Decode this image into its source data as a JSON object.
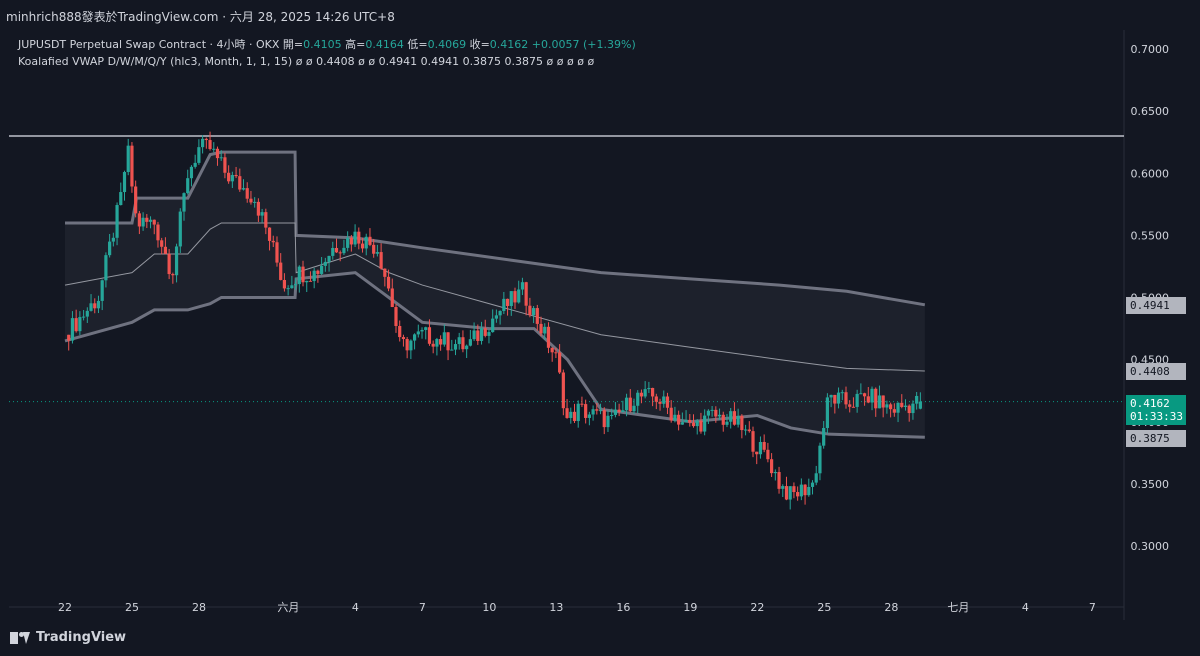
{
  "attribution": "minhrich888發表於TradingView.com · 六月 28, 2025 14:26 UTC+8",
  "legend": {
    "symbol": "JUPUSDT Perpetual Swap Contract · 4小時 · OKX",
    "open_label": "開=",
    "open": "0.4105",
    "high_label": "高=",
    "high": "0.4164",
    "low_label": "低=",
    "low": "0.4069",
    "close_label": "收=",
    "close": "0.4162",
    "change": "+0.0057 (+1.39%)",
    "indicator": "Koalafied VWAP D/W/M/Q/Y (hlc3, Month, 1, 1, 15)",
    "indicator_values": "ø ø 0.4408 ø ø 0.4941 0.4941 0.3875 0.3875 ø ø ø ø ø"
  },
  "badges": {
    "upper": "0.4941",
    "mid": "0.4408",
    "price": "0.4162",
    "countdown": "01:33:33",
    "lower": "0.3875"
  },
  "footer": {
    "logo_text": "TradingView"
  },
  "colors": {
    "up": "#26a69a",
    "down": "#ef5350",
    "band": "#787b86",
    "background": "#131722"
  },
  "chart_data": {
    "type": "candlestick",
    "symbol": "JUPUSDT",
    "interval": "4h",
    "y_ticks": [
      0.3,
      0.35,
      0.4,
      0.45,
      0.5,
      0.55,
      0.6,
      0.65,
      0.7
    ],
    "y_tick_labels": [
      "0.3000",
      "0.3500",
      "0.4000",
      "0.4500",
      "0.5000",
      "0.5500",
      "0.6000",
      "0.6500",
      "0.7000"
    ],
    "ylim": [
      0.28,
      0.72
    ],
    "x_tick_labels": [
      "22",
      "25",
      "28",
      "六月",
      "4",
      "7",
      "10",
      "13",
      "16",
      "19",
      "22",
      "25",
      "28",
      "七月",
      "4",
      "7"
    ],
    "x_tick_days": [
      0,
      3,
      6,
      10,
      13,
      16,
      19,
      22,
      25,
      28,
      31,
      34,
      37,
      40,
      43,
      46
    ],
    "horizontal_line": 0.63,
    "current_price": 0.4162,
    "price_path": [
      [
        0,
        0.47
      ],
      [
        1.5,
        0.5
      ],
      [
        2.5,
        0.58
      ],
      [
        2.8,
        0.62
      ],
      [
        3.2,
        0.56
      ],
      [
        4.0,
        0.56
      ],
      [
        4.8,
        0.52
      ],
      [
        5.5,
        0.6
      ],
      [
        6.0,
        0.62
      ],
      [
        6.5,
        0.62
      ],
      [
        7.2,
        0.6
      ],
      [
        8.5,
        0.58
      ],
      [
        9.3,
        0.54
      ],
      [
        9.8,
        0.51
      ],
      [
        10.5,
        0.52
      ],
      [
        11.2,
        0.52
      ],
      [
        12.0,
        0.54
      ],
      [
        13.0,
        0.55
      ],
      [
        14.0,
        0.54
      ],
      [
        14.6,
        0.5
      ],
      [
        15.0,
        0.46
      ],
      [
        16.0,
        0.47
      ],
      [
        18.0,
        0.46
      ],
      [
        19.5,
        0.49
      ],
      [
        20.5,
        0.505
      ],
      [
        21.2,
        0.48
      ],
      [
        22.0,
        0.45
      ],
      [
        22.5,
        0.4
      ],
      [
        23.0,
        0.41
      ],
      [
        24.5,
        0.4
      ],
      [
        25.5,
        0.42
      ],
      [
        26.5,
        0.42
      ],
      [
        27.0,
        0.41
      ],
      [
        28.0,
        0.395
      ],
      [
        29.0,
        0.405
      ],
      [
        30.0,
        0.4
      ],
      [
        31.0,
        0.38
      ],
      [
        31.5,
        0.37
      ],
      [
        32.0,
        0.35
      ],
      [
        32.5,
        0.34
      ],
      [
        33.5,
        0.35
      ],
      [
        34.2,
        0.42
      ],
      [
        35.0,
        0.415
      ],
      [
        36.0,
        0.42
      ],
      [
        37.0,
        0.41
      ],
      [
        38.3,
        0.4162
      ]
    ],
    "vwap_upper": [
      [
        0,
        0.56
      ],
      [
        3.0,
        0.56
      ],
      [
        3.2,
        0.58
      ],
      [
        5.5,
        0.58
      ],
      [
        6.5,
        0.615
      ],
      [
        7.0,
        0.617
      ],
      [
        10.3,
        0.617
      ],
      [
        10.35,
        0.55
      ],
      [
        13.0,
        0.548
      ],
      [
        16.0,
        0.54
      ],
      [
        20.0,
        0.53
      ],
      [
        24.0,
        0.52
      ],
      [
        28.0,
        0.515
      ],
      [
        32.0,
        0.51
      ],
      [
        35.0,
        0.505
      ],
      [
        38.5,
        0.4941
      ]
    ],
    "vwap_mid": [
      [
        0,
        0.51
      ],
      [
        3.0,
        0.52
      ],
      [
        4.0,
        0.535
      ],
      [
        5.5,
        0.535
      ],
      [
        6.5,
        0.555
      ],
      [
        7.0,
        0.56
      ],
      [
        10.3,
        0.56
      ],
      [
        10.35,
        0.52
      ],
      [
        13.0,
        0.535
      ],
      [
        14.5,
        0.52
      ],
      [
        16.0,
        0.51
      ],
      [
        20.0,
        0.49
      ],
      [
        24.0,
        0.47
      ],
      [
        28.0,
        0.46
      ],
      [
        32.0,
        0.45
      ],
      [
        35.0,
        0.443
      ],
      [
        38.5,
        0.4408
      ]
    ],
    "vwap_lower": [
      [
        0,
        0.465
      ],
      [
        3.0,
        0.48
      ],
      [
        4.0,
        0.49
      ],
      [
        5.5,
        0.49
      ],
      [
        6.5,
        0.495
      ],
      [
        7.0,
        0.5
      ],
      [
        10.3,
        0.5
      ],
      [
        10.35,
        0.515
      ],
      [
        13.0,
        0.52
      ],
      [
        14.5,
        0.5
      ],
      [
        16.0,
        0.48
      ],
      [
        19.0,
        0.475
      ],
      [
        21.0,
        0.475
      ],
      [
        22.5,
        0.45
      ],
      [
        24.0,
        0.41
      ],
      [
        28.0,
        0.4
      ],
      [
        31.0,
        0.405
      ],
      [
        32.5,
        0.395
      ],
      [
        34.2,
        0.39
      ],
      [
        38.5,
        0.3875
      ]
    ]
  }
}
